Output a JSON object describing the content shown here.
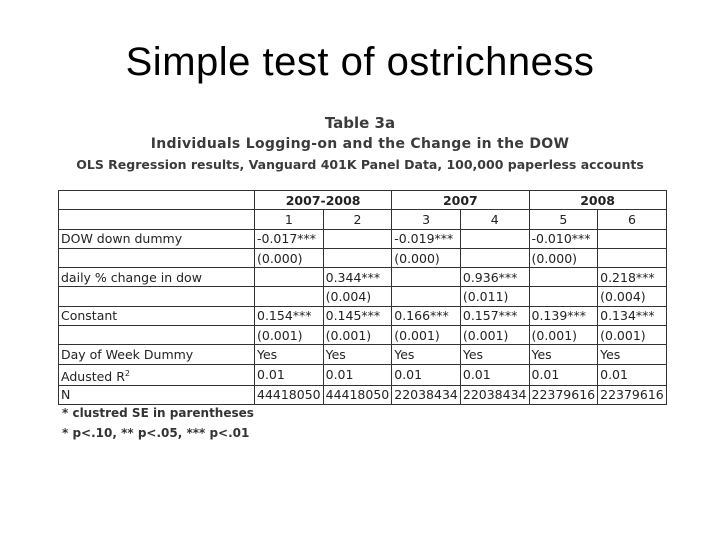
{
  "slide": {
    "title": "Simple test of ostrichness"
  },
  "table": {
    "caption_line1": "Table 3a",
    "caption_line2": "Individuals Logging-on and the Change in the DOW",
    "caption_line3": "OLS Regression results, Vanguard 401K Panel Data, 100,000 paperless accounts",
    "periods": [
      "2007-2008",
      "2007",
      "2008"
    ],
    "models": [
      "1",
      "2",
      "3",
      "4",
      "5",
      "6"
    ],
    "rows": [
      {
        "label": "DOW down dummy",
        "cells": [
          "-0.017***",
          "",
          "-0.019***",
          "",
          "-0.010***",
          ""
        ]
      },
      {
        "label": "",
        "cells": [
          "(0.000)",
          "",
          "(0.000)",
          "",
          "(0.000)",
          ""
        ]
      },
      {
        "label": "daily % change in dow",
        "cells": [
          "",
          "0.344***",
          "",
          "0.936***",
          "",
          "0.218***"
        ]
      },
      {
        "label": "",
        "cells": [
          "",
          "(0.004)",
          "",
          "(0.011)",
          "",
          "(0.004)"
        ]
      },
      {
        "label": "Constant",
        "cells": [
          "0.154***",
          "0.145***",
          "0.166***",
          "0.157***",
          "0.139***",
          "0.134***"
        ]
      },
      {
        "label": "",
        "cells": [
          "(0.001)",
          "(0.001)",
          "(0.001)",
          "(0.001)",
          "(0.001)",
          "(0.001)"
        ]
      },
      {
        "label": "Day of Week Dummy",
        "cells": [
          "Yes",
          "Yes",
          "Yes",
          "Yes",
          "Yes",
          "Yes"
        ]
      },
      {
        "label": "Adusted R",
        "sup": "2",
        "cells": [
          "0.01",
          "0.01",
          "0.01",
          "0.01",
          "0.01",
          "0.01"
        ]
      },
      {
        "label": "N",
        "cells": [
          "44418050",
          "44418050",
          "22038434",
          "22038434",
          "22379616",
          "22379616"
        ]
      }
    ],
    "notes": [
      "* clustred SE in parentheses",
      "* p<.10, ** p<.05, *** p<.01"
    ]
  }
}
